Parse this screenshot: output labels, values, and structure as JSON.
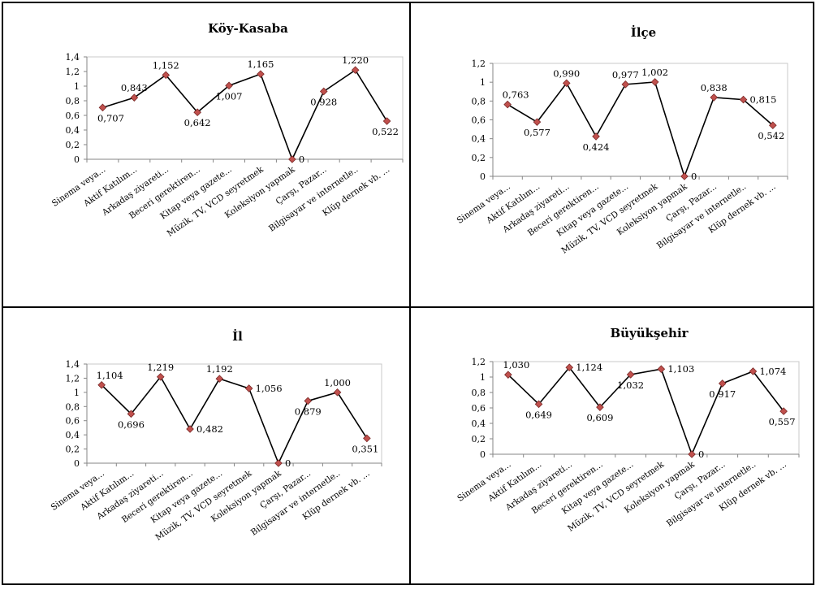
{
  "chart_data": [
    {
      "type": "line",
      "title": "Köy-Kasaba",
      "categories": [
        "Sinema veya...",
        "Aktif Katılım...",
        "Arkadaş ziyareti...",
        "Beceri gerektiren...",
        "Kitap veya gazete...",
        "Müzik, TV, VCD seyretmek",
        "Koleksiyon yapmak",
        "Çarşı, Pazar...",
        "Bilgisayar ve internetle..",
        "Klüp dernek vb. ..."
      ],
      "values": [
        0.707,
        0.843,
        1.152,
        0.642,
        1.007,
        1.165,
        0,
        0.928,
        1.22,
        0.522
      ],
      "value_labels": [
        "0,707",
        "0,843",
        "1,152",
        "0,642",
        "1,007",
        "1,165",
        "0",
        "0,928",
        "1,220",
        "0,522"
      ],
      "ylim": [
        0,
        1.4
      ],
      "yticks": [
        "0",
        "0,2",
        "0,4",
        "0,6",
        "0,8",
        "1",
        "1,2",
        "1,4"
      ],
      "xlabel": "",
      "ylabel": "",
      "grid": false,
      "colors": {
        "line": "#000000",
        "marker": "#c0504d",
        "marker_edge": "#7a2a28"
      }
    },
    {
      "type": "line",
      "title": "İlçe",
      "categories": [
        "Sinema veya...",
        "Aktif Katılım...",
        "Arkadaş ziyareti...",
        "Beceri gerektiren...",
        "Kitap veya gazete...",
        "Müzik, TV, VCD seyretmek",
        "Koleksiyon yapmak",
        "Çarşı, Pazar...",
        "Bilgisayar ve internetle..",
        "Klüp dernek vb. ..."
      ],
      "values": [
        0.763,
        0.577,
        0.99,
        0.424,
        0.977,
        1.002,
        0,
        0.838,
        0.815,
        0.542
      ],
      "value_labels": [
        "0,763",
        "0,577",
        "0,990",
        "0,424",
        "0,977",
        "1,002",
        "0",
        "0,838",
        "0,815",
        "0,542"
      ],
      "ylim": [
        0,
        1.2
      ],
      "yticks": [
        "0",
        "0,2",
        "0,4",
        "0,6",
        "0,8",
        "1",
        "1,2"
      ],
      "xlabel": "",
      "ylabel": "",
      "grid": false,
      "colors": {
        "line": "#000000",
        "marker": "#c0504d",
        "marker_edge": "#7a2a28"
      }
    },
    {
      "type": "line",
      "title": "İl",
      "categories": [
        "Sinema veya...",
        "Aktif Katılım...",
        "Arkadaş ziyareti...",
        "Beceri gerektiren...",
        "Kitap veya gazete...",
        "Müzik, TV, VCD seyretmek",
        "Koleksiyon yapmak",
        "Çarşı, Pazar...",
        "Bilgisayar ve internetle..",
        "Klüp dernek vb. ..."
      ],
      "values": [
        1.104,
        0.696,
        1.219,
        0.482,
        1.192,
        1.056,
        0,
        0.879,
        1.0,
        0.351
      ],
      "value_labels": [
        "1,104",
        "0,696",
        "1,219",
        "0,482",
        "1,192",
        "1,056",
        "0",
        "0,879",
        "1,000",
        "0,351"
      ],
      "ylim": [
        0,
        1.4
      ],
      "yticks": [
        "0",
        "0,2",
        "0,4",
        "0,6",
        "0,8",
        "1",
        "1,2",
        "1,4"
      ],
      "xlabel": "",
      "ylabel": "",
      "grid": false,
      "colors": {
        "line": "#000000",
        "marker": "#c0504d",
        "marker_edge": "#7a2a28"
      }
    },
    {
      "type": "line",
      "title": "Büyükşehir",
      "categories": [
        "Sinema veya...",
        "Aktif Katılım...",
        "Arkadaş ziyareti...",
        "Beceri gerektiren...",
        "Kitap veya gazete...",
        "Müzik, TV, VCD seyretmek",
        "Koleksiyon yapmak",
        "Çarşı, Pazar...",
        "Bilgisayar ve internetle..",
        "Klüp dernek vb. ..."
      ],
      "values": [
        1.03,
        0.649,
        1.124,
        0.609,
        1.032,
        1.103,
        0,
        0.917,
        1.074,
        0.557
      ],
      "value_labels": [
        "1,030",
        "0,649",
        "1,124",
        "0,609",
        "1,032",
        "1,103",
        "0",
        "0,917",
        "1,074",
        "0,557"
      ],
      "ylim": [
        0,
        1.2
      ],
      "yticks": [
        "0",
        "0,2",
        "0,4",
        "0,6",
        "0,8",
        "1",
        "1,2"
      ],
      "xlabel": "",
      "ylabel": "",
      "grid": false,
      "colors": {
        "line": "#000000",
        "marker": "#c0504d",
        "marker_edge": "#7a2a28"
      }
    }
  ]
}
